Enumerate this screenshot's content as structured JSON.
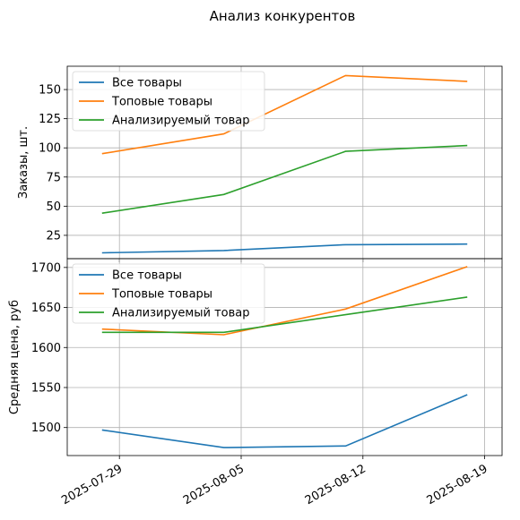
{
  "figure": {
    "title": "Анализ конкурентов",
    "x_tick_labels": [
      "2025-07-29",
      "2025-08-05",
      "2025-08-12",
      "2025-08-19"
    ]
  },
  "chart_data": [
    {
      "type": "line",
      "title": "",
      "xlabel": "",
      "ylabel": "Заказы, шт.",
      "x": [
        "2025-07-28",
        "2025-08-04",
        "2025-08-11",
        "2025-08-18"
      ],
      "xlim": [
        "2025-07-26",
        "2025-08-20"
      ],
      "ylim": [
        5,
        170
      ],
      "yticks": [
        25,
        50,
        75,
        100,
        125,
        150
      ],
      "grid": true,
      "legend_position": "top-left",
      "series": [
        {
          "name": "Все товары",
          "color": "#1f77b4",
          "values": [
            10,
            12,
            17,
            17.5
          ]
        },
        {
          "name": "Топовые товары",
          "color": "#ff7f0e",
          "values": [
            95,
            112,
            162,
            157
          ]
        },
        {
          "name": "Анализируемый товар",
          "color": "#2ca02c",
          "values": [
            44,
            60,
            97,
            102
          ]
        }
      ]
    },
    {
      "type": "line",
      "title": "",
      "xlabel": "",
      "ylabel": "Средняя цена, руб",
      "x": [
        "2025-07-28",
        "2025-08-04",
        "2025-08-11",
        "2025-08-18"
      ],
      "xlim": [
        "2025-07-26",
        "2025-08-20"
      ],
      "ylim": [
        1465,
        1711
      ],
      "yticks": [
        1500,
        1550,
        1600,
        1650,
        1700
      ],
      "grid": true,
      "legend_position": "top-left",
      "series": [
        {
          "name": "Все товары",
          "color": "#1f77b4",
          "values": [
            1497,
            1475,
            1477,
            1541
          ]
        },
        {
          "name": "Топовые товары",
          "color": "#ff7f0e",
          "values": [
            1623,
            1616,
            1648,
            1701
          ]
        },
        {
          "name": "Анализируемый товар",
          "color": "#2ca02c",
          "values": [
            1619,
            1619,
            1641,
            1663
          ]
        }
      ]
    }
  ]
}
